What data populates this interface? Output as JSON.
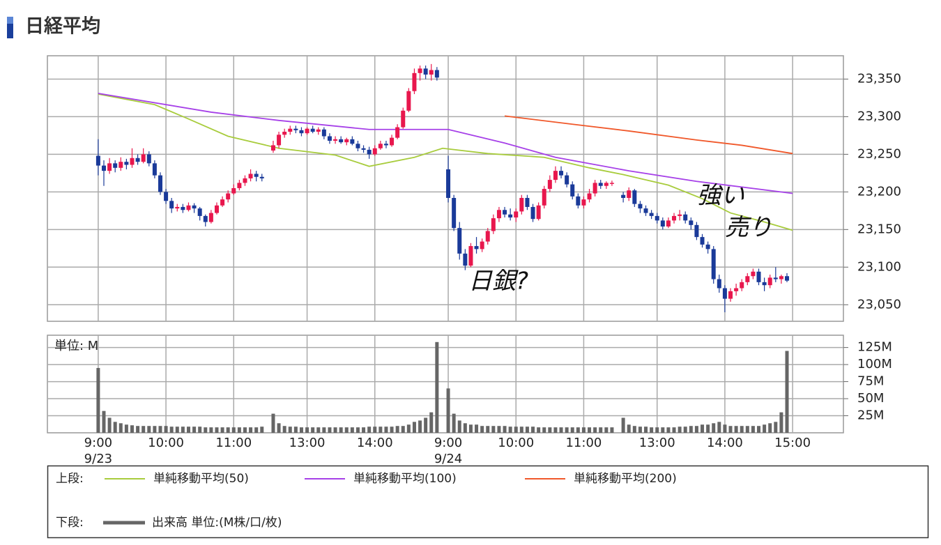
{
  "title": "日経平均",
  "chart_data": [
    {
      "type": "candlestick",
      "x": [
        0,
        1,
        2,
        3,
        4,
        5,
        6,
        7,
        8,
        9,
        10,
        11,
        12,
        13,
        14,
        15,
        16,
        17,
        18,
        19,
        20,
        21,
        22,
        23,
        24,
        25,
        26,
        27,
        28,
        29,
        31,
        32,
        33,
        34,
        35,
        36,
        37,
        38,
        39,
        40,
        41,
        42,
        43,
        44,
        45,
        46,
        47,
        48,
        49,
        50,
        51,
        52,
        53,
        54,
        55,
        56,
        57,
        58,
        59,
        60,
        62,
        63,
        64,
        65,
        66,
        67,
        68,
        69,
        70,
        71,
        72,
        73,
        74,
        75,
        76,
        77,
        78,
        79,
        80,
        81,
        82,
        83,
        84,
        85,
        86,
        87,
        88,
        89,
        90,
        91,
        93,
        94,
        95,
        96,
        97,
        98,
        99,
        100,
        101,
        102,
        103,
        104,
        105,
        106,
        107,
        108,
        109,
        110,
        111,
        112,
        113,
        114,
        115,
        116,
        117,
        118,
        119,
        120,
        121,
        122
      ],
      "candles": [
        [
          23248,
          23270,
          23222,
          23235
        ],
        [
          23235,
          23242,
          23208,
          23228
        ],
        [
          23228,
          23245,
          23224,
          23238
        ],
        [
          23238,
          23242,
          23226,
          23232
        ],
        [
          23232,
          23246,
          23228,
          23240
        ],
        [
          23240,
          23244,
          23230,
          23236
        ],
        [
          23236,
          23258,
          23232,
          23245
        ],
        [
          23245,
          23250,
          23236,
          23240
        ],
        [
          23240,
          23258,
          23238,
          23250
        ],
        [
          23250,
          23254,
          23234,
          23238
        ],
        [
          23238,
          23242,
          23218,
          23222
        ],
        [
          23222,
          23226,
          23196,
          23200
        ],
        [
          23200,
          23204,
          23184,
          23188
        ],
        [
          23188,
          23192,
          23172,
          23178
        ],
        [
          23178,
          23184,
          23174,
          23180
        ],
        [
          23180,
          23184,
          23172,
          23176
        ],
        [
          23176,
          23186,
          23174,
          23182
        ],
        [
          23182,
          23185,
          23172,
          23178
        ],
        [
          23178,
          23180,
          23162,
          23168
        ],
        [
          23168,
          23170,
          23154,
          23160
        ],
        [
          23160,
          23176,
          23158,
          23172
        ],
        [
          23172,
          23186,
          23170,
          23182
        ],
        [
          23182,
          23194,
          23180,
          23190
        ],
        [
          23190,
          23202,
          23186,
          23198
        ],
        [
          23198,
          23210,
          23196,
          23205
        ],
        [
          23205,
          23216,
          23202,
          23212
        ],
        [
          23212,
          23222,
          23208,
          23218
        ],
        [
          23218,
          23230,
          23214,
          23224
        ],
        [
          23224,
          23228,
          23214,
          23220
        ],
        [
          23220,
          23224,
          23214,
          23218
        ],
        [
          23255,
          23268,
          23252,
          23262
        ],
        [
          23262,
          23280,
          23258,
          23276
        ],
        [
          23276,
          23284,
          23272,
          23280
        ],
        [
          23280,
          23288,
          23276,
          23284
        ],
        [
          23284,
          23288,
          23278,
          23282
        ],
        [
          23282,
          23286,
          23274,
          23278
        ],
        [
          23278,
          23286,
          23276,
          23284
        ],
        [
          23284,
          23288,
          23278,
          23280
        ],
        [
          23280,
          23286,
          23276,
          23283
        ],
        [
          23283,
          23286,
          23270,
          23274
        ],
        [
          23274,
          23278,
          23264,
          23268
        ],
        [
          23268,
          23274,
          23264,
          23270
        ],
        [
          23270,
          23274,
          23264,
          23266
        ],
        [
          23266,
          23272,
          23262,
          23270
        ],
        [
          23270,
          23274,
          23262,
          23264
        ],
        [
          23264,
          23268,
          23254,
          23258
        ],
        [
          23258,
          23262,
          23252,
          23256
        ],
        [
          23256,
          23260,
          23244,
          23250
        ],
        [
          23250,
          23262,
          23248,
          23258
        ],
        [
          23258,
          23268,
          23256,
          23264
        ],
        [
          23264,
          23268,
          23258,
          23262
        ],
        [
          23262,
          23276,
          23260,
          23272
        ],
        [
          23272,
          23290,
          23270,
          23286
        ],
        [
          23286,
          23312,
          23284,
          23308
        ],
        [
          23308,
          23338,
          23306,
          23334
        ],
        [
          23334,
          23364,
          23330,
          23358
        ],
        [
          23358,
          23368,
          23348,
          23364
        ],
        [
          23364,
          23368,
          23350,
          23356
        ],
        [
          23356,
          23370,
          23348,
          23362
        ],
        [
          23362,
          23366,
          23348,
          23352
        ],
        [
          23230,
          23248,
          23186,
          23192
        ],
        [
          23192,
          23196,
          23148,
          23152
        ],
        [
          23152,
          23160,
          23110,
          23118
        ],
        [
          23118,
          23124,
          23096,
          23102
        ],
        [
          23102,
          23132,
          23100,
          23128
        ],
        [
          23128,
          23140,
          23118,
          23124
        ],
        [
          23124,
          23138,
          23120,
          23134
        ],
        [
          23134,
          23152,
          23130,
          23148
        ],
        [
          23148,
          23170,
          23144,
          23165
        ],
        [
          23165,
          23180,
          23160,
          23176
        ],
        [
          23176,
          23180,
          23166,
          23170
        ],
        [
          23170,
          23178,
          23162,
          23166
        ],
        [
          23166,
          23178,
          23160,
          23174
        ],
        [
          23174,
          23196,
          23170,
          23192
        ],
        [
          23192,
          23196,
          23176,
          23180
        ],
        [
          23180,
          23184,
          23160,
          23164
        ],
        [
          23164,
          23186,
          23162,
          23182
        ],
        [
          23182,
          23208,
          23178,
          23204
        ],
        [
          23204,
          23222,
          23200,
          23216
        ],
        [
          23216,
          23234,
          23212,
          23228
        ],
        [
          23228,
          23234,
          23218,
          23222
        ],
        [
          23222,
          23226,
          23206,
          23210
        ],
        [
          23210,
          23214,
          23190,
          23194
        ],
        [
          23194,
          23198,
          23178,
          23182
        ],
        [
          23182,
          23194,
          23178,
          23190
        ],
        [
          23190,
          23204,
          23186,
          23198
        ],
        [
          23198,
          23216,
          23194,
          23212
        ],
        [
          23212,
          23216,
          23204,
          23208
        ],
        [
          23208,
          23214,
          23204,
          23212
        ],
        [
          23212,
          23215,
          23208,
          23212
        ],
        [
          23196,
          23200,
          23186,
          23192
        ],
        [
          23192,
          23206,
          23188,
          23202
        ],
        [
          23202,
          23204,
          23180,
          23184
        ],
        [
          23184,
          23188,
          23172,
          23178
        ],
        [
          23178,
          23182,
          23168,
          23172
        ],
        [
          23172,
          23176,
          23164,
          23168
        ],
        [
          23168,
          23172,
          23158,
          23162
        ],
        [
          23162,
          23166,
          23150,
          23154
        ],
        [
          23154,
          23166,
          23152,
          23162
        ],
        [
          23162,
          23172,
          23158,
          23168
        ],
        [
          23168,
          23176,
          23162,
          23170
        ],
        [
          23170,
          23174,
          23158,
          23162
        ],
        [
          23162,
          23166,
          23150,
          23156
        ],
        [
          23156,
          23160,
          23136,
          23140
        ],
        [
          23140,
          23144,
          23126,
          23130
        ],
        [
          23130,
          23134,
          23118,
          23124
        ],
        [
          23124,
          23128,
          23078,
          23084
        ],
        [
          23084,
          23090,
          23066,
          23072
        ],
        [
          23072,
          23076,
          23040,
          23058
        ],
        [
          23058,
          23072,
          23054,
          23068
        ],
        [
          23068,
          23078,
          23062,
          23072
        ],
        [
          23072,
          23084,
          23068,
          23080
        ],
        [
          23080,
          23092,
          23076,
          23088
        ],
        [
          23088,
          23098,
          23084,
          23094
        ],
        [
          23094,
          23098,
          23076,
          23080
        ],
        [
          23080,
          23086,
          23068,
          23076
        ],
        [
          23076,
          23090,
          23072,
          23086
        ],
        [
          23086,
          23100,
          23080,
          23084
        ],
        [
          23084,
          23090,
          23078,
          23088
        ],
        [
          23088,
          23092,
          23080,
          23082
        ]
      ],
      "up_color": "#e8174d",
      "down_color": "#1a3a99",
      "xlim": [
        -9,
        132
      ],
      "ylim": [
        23028,
        23381
      ],
      "yticks": [
        {
          "value": 23050,
          "label": "23,050"
        },
        {
          "value": 23100,
          "label": "23,100"
        },
        {
          "value": 23150,
          "label": "23,150"
        },
        {
          "value": 23200,
          "label": "23,200"
        },
        {
          "value": 23250,
          "label": "23,250"
        },
        {
          "value": 23300,
          "label": "23,300"
        },
        {
          "value": 23350,
          "label": "23,350"
        }
      ],
      "xticks": [
        {
          "value": 0,
          "label": "9:00"
        },
        {
          "value": 12,
          "label": "10:00"
        },
        {
          "value": 24,
          "label": "11:00"
        },
        {
          "value": 37,
          "label": "13:00"
        },
        {
          "value": 49,
          "label": "14:00"
        },
        {
          "value": 62,
          "label": "9:00"
        },
        {
          "value": 74,
          "label": "10:00"
        },
        {
          "value": 86,
          "label": "11:00"
        },
        {
          "value": 99,
          "label": "13:00"
        },
        {
          "value": 111,
          "label": "14:00"
        },
        {
          "value": 123,
          "label": "15:00"
        }
      ],
      "date_labels": [
        {
          "value": 0,
          "label": "9/23"
        },
        {
          "value": 62,
          "label": "9/24"
        }
      ],
      "grid": true,
      "series": [
        {
          "name": "単純移動平均(50)",
          "color": "#a8cc3c",
          "x": [
            0,
            10,
            16,
            23,
            32,
            42,
            48,
            56,
            61,
            69,
            79,
            87,
            93,
            101,
            107,
            112,
            118,
            123
          ],
          "values": [
            23330,
            23316,
            23297,
            23274,
            23258,
            23249,
            23234,
            23246,
            23258,
            23251,
            23246,
            23232,
            23223,
            23209,
            23191,
            23172,
            23160,
            23149
          ]
        },
        {
          "name": "単純移動平均(100)",
          "color": "#a640e8",
          "x": [
            0,
            20,
            32,
            48,
            62,
            72,
            81,
            94,
            106,
            123
          ],
          "values": [
            23331,
            23306,
            23295,
            23283,
            23283,
            23265,
            23246,
            23228,
            23214,
            23198
          ]
        },
        {
          "name": "単純移動平均(200)",
          "color": "#f0582a",
          "x": [
            72,
            84,
            94,
            106,
            114,
            123
          ],
          "values": [
            23301,
            23290,
            23281,
            23269,
            23262,
            23251
          ]
        }
      ],
      "annotations": [
        "日銀?",
        "強い",
        "売り"
      ]
    },
    {
      "type": "bar",
      "name": "出来高 単位:(M株/口/枚)",
      "unit_label": "単位: M",
      "color": "#666666",
      "values": [
        95,
        32,
        22,
        16,
        14,
        12,
        11,
        10,
        10,
        10,
        10,
        10,
        10,
        9,
        9,
        9,
        9,
        9,
        9,
        8,
        8,
        8,
        8,
        8,
        8,
        8,
        8,
        8,
        8,
        9,
        28,
        14,
        10,
        9,
        9,
        8,
        8,
        8,
        8,
        8,
        8,
        8,
        8,
        8,
        8,
        8,
        8,
        9,
        9,
        9,
        9,
        9,
        10,
        10,
        12,
        16,
        18,
        22,
        30,
        133,
        65,
        28,
        18,
        14,
        12,
        12,
        10,
        10,
        10,
        10,
        10,
        9,
        9,
        9,
        9,
        9,
        8,
        8,
        8,
        8,
        8,
        8,
        8,
        8,
        8,
        8,
        8,
        8,
        8,
        8,
        22,
        12,
        10,
        9,
        9,
        8,
        8,
        8,
        8,
        8,
        9,
        9,
        10,
        10,
        12,
        12,
        14,
        16,
        12,
        10,
        10,
        10,
        10,
        10,
        10,
        12,
        14,
        16,
        30,
        120
      ],
      "ylim": [
        0,
        143
      ],
      "yticks": [
        {
          "value": 25,
          "label": "25M"
        },
        {
          "value": 50,
          "label": "50M"
        },
        {
          "value": 75,
          "label": "75M"
        },
        {
          "value": 100,
          "label": "100M"
        },
        {
          "value": 125,
          "label": "125M"
        }
      ],
      "grid": true
    }
  ],
  "legend": {
    "upper_label": "上段:",
    "lower_label": "下段:"
  }
}
